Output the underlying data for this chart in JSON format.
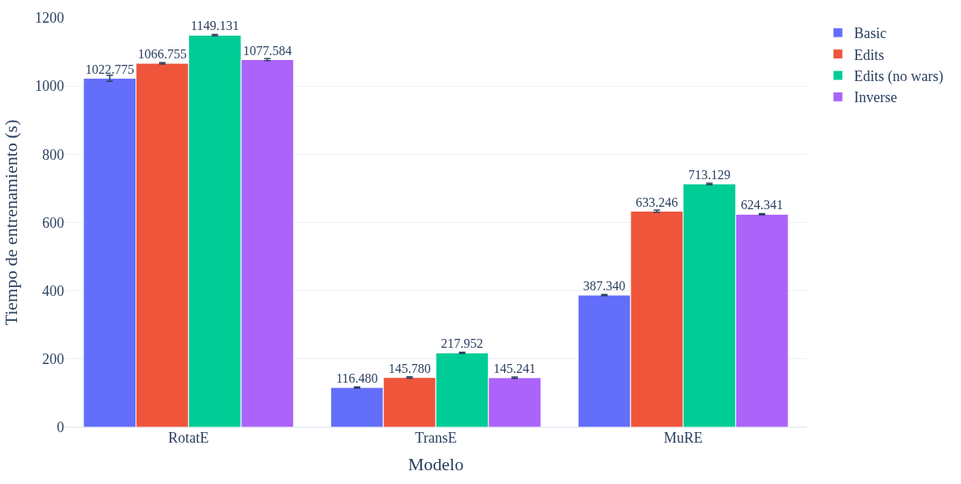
{
  "chart_data": {
    "type": "bar",
    "xlabel": "Modelo",
    "ylabel": "Tiempo de entrenamiento (s)",
    "categories": [
      "RotatE",
      "TransE",
      "MuRE"
    ],
    "series": [
      {
        "name": "Basic",
        "color": "#636efa",
        "values": [
          1022.775,
          116.48,
          387.34
        ],
        "value_labels": [
          "1022.775",
          "116.480",
          "387.340"
        ],
        "errors": [
          9,
          2,
          2
        ]
      },
      {
        "name": "Edits",
        "color": "#ef553b",
        "values": [
          1066.755,
          145.78,
          633.246
        ],
        "value_labels": [
          "1066.755",
          "145.780",
          "633.246"
        ],
        "errors": [
          2,
          2,
          3
        ]
      },
      {
        "name": "Edits (no wars)",
        "color": "#00cc96",
        "values": [
          1149.131,
          217.952,
          713.129
        ],
        "value_labels": [
          "1149.131",
          "217.952",
          "713.129"
        ],
        "errors": [
          2,
          2,
          2
        ]
      },
      {
        "name": "Inverse",
        "color": "#ab63fa",
        "values": [
          1077.584,
          145.241,
          624.341
        ],
        "value_labels": [
          "1077.584",
          "145.241",
          "624.341"
        ],
        "errors": [
          3,
          2,
          2
        ]
      }
    ],
    "ylim": [
      0,
      1200
    ],
    "yticks": [
      0,
      200,
      400,
      600,
      800,
      1000,
      1200
    ],
    "grid": "y",
    "legend": "top right"
  }
}
